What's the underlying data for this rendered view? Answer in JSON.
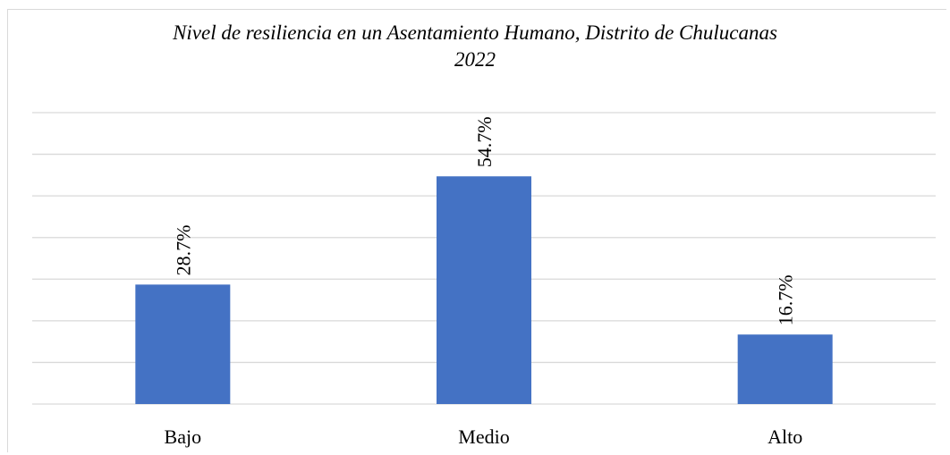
{
  "chart_data": {
    "type": "bar",
    "title_lines": [
      "Nivel de resiliencia en un Asentamiento Humano, Distrito de Chulucanas",
      "2022"
    ],
    "categories": [
      "Bajo",
      "Medio",
      "Alto"
    ],
    "values": [
      28.7,
      54.7,
      16.7
    ],
    "data_labels": [
      "28.7%",
      "54.7%",
      "16.7%"
    ],
    "ylim": [
      0,
      70
    ],
    "grid": true,
    "bar_color": "#4472C4",
    "grid_color": "#d9d9d9"
  }
}
